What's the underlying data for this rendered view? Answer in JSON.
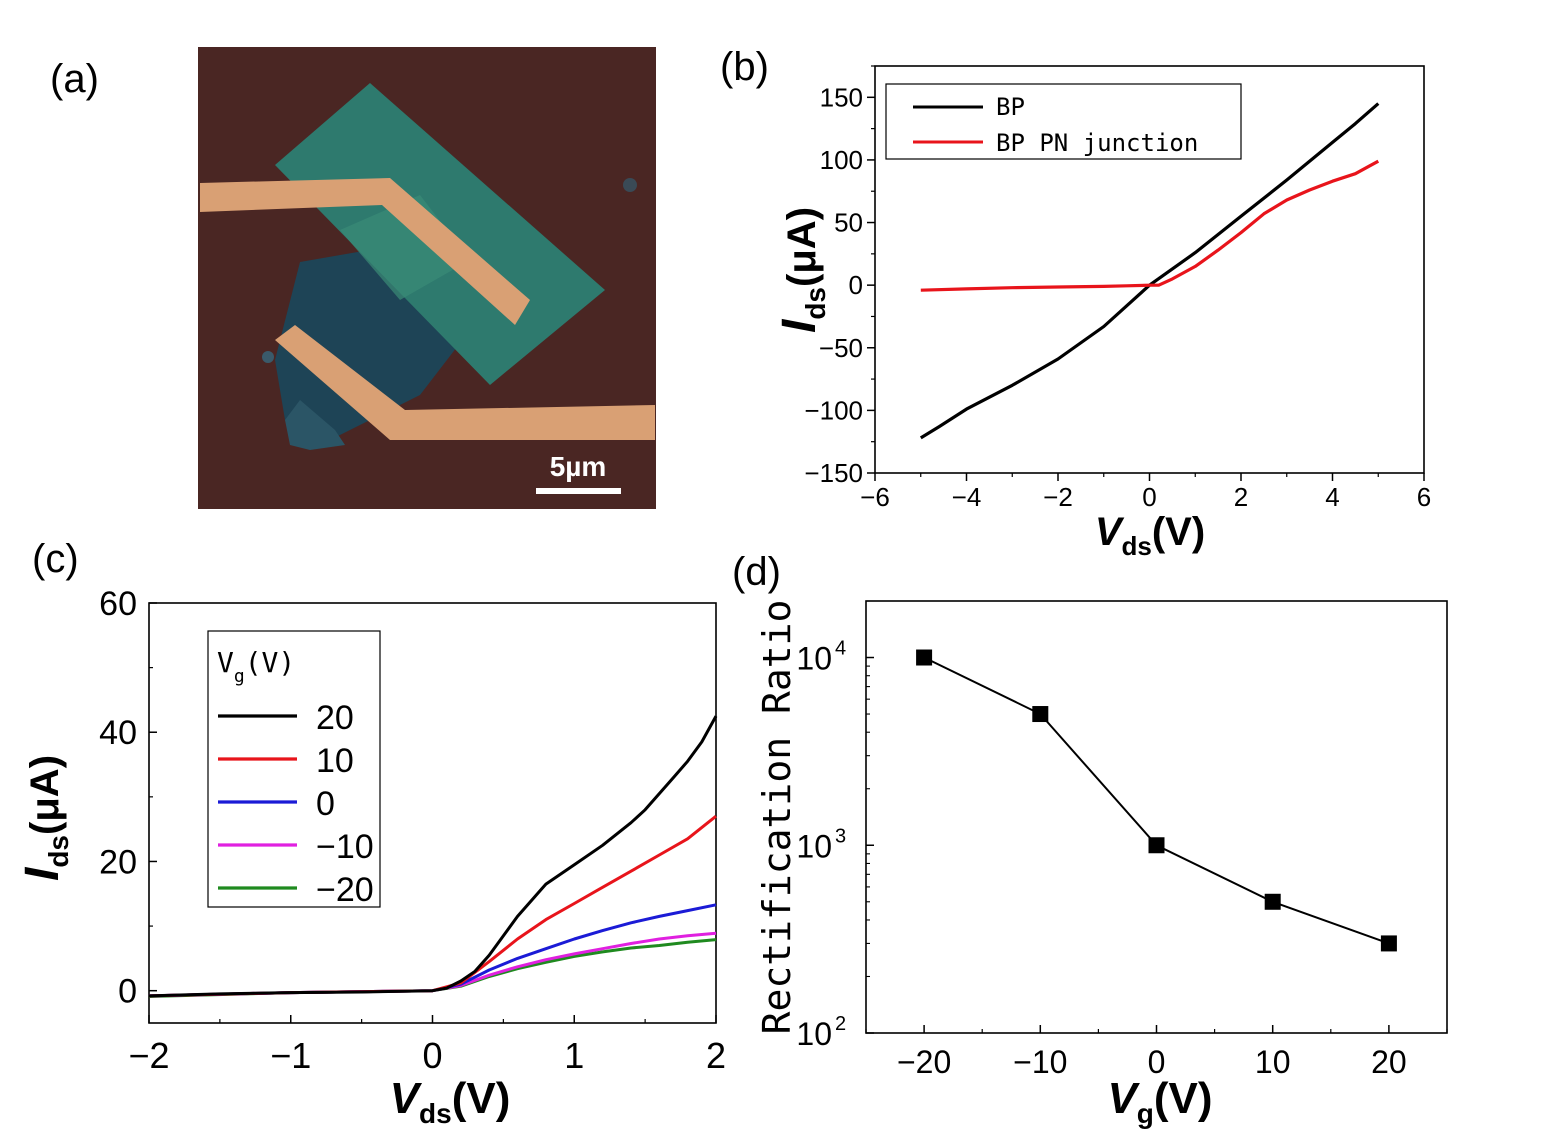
{
  "panel_labels": [
    "(a)",
    "(b)",
    "(c)",
    "(d)"
  ],
  "panel_a": {
    "scale_bar_label": "5µm",
    "colors": {
      "substrate": "#4a2623",
      "flake_dark": "#1e4456",
      "flake_teal": "#2e7a6e",
      "electrode": "#d9a074"
    }
  },
  "chart_data": [
    {
      "panel": "(b)",
      "type": "line",
      "xlabel_main": "V",
      "xlabel_sub": "ds",
      "xlabel_unit": "(V)",
      "ylabel_main": "I",
      "ylabel_sub": "ds",
      "ylabel_unit": "(μA)",
      "xlim": [
        -6,
        6
      ],
      "ylim": [
        -150,
        175
      ],
      "xticks": [
        -6,
        -4,
        -2,
        0,
        2,
        4,
        6
      ],
      "xtick_labels": [
        "−6",
        "−4",
        "−2",
        "0",
        "2",
        "4",
        "6"
      ],
      "yticks": [
        150,
        100,
        50,
        0,
        -50,
        -100,
        -150
      ],
      "ytick_labels": [
        "150",
        "100",
        "50",
        "0",
        "−50",
        "−100",
        "−150"
      ],
      "legend_position": "top-left",
      "series": [
        {
          "name": "BP",
          "color": "#000000",
          "points": [
            [
              -5,
              -122
            ],
            [
              -4.6,
              -113
            ],
            [
              -4,
              -99
            ],
            [
              -3,
              -80
            ],
            [
              -2,
              -59
            ],
            [
              -1,
              -33
            ],
            [
              0,
              0
            ],
            [
              1,
              26
            ],
            [
              2,
              55
            ],
            [
              3,
              84
            ],
            [
              4,
              114
            ],
            [
              4.5,
              129
            ],
            [
              5,
              145
            ]
          ]
        },
        {
          "name": "BP PN junction",
          "color": "#e8141b",
          "points": [
            [
              -5,
              -4
            ],
            [
              -4,
              -3
            ],
            [
              -3,
              -2
            ],
            [
              -2,
              -1.5
            ],
            [
              -1,
              -1
            ],
            [
              -0.5,
              -0.5
            ],
            [
              0,
              0
            ],
            [
              0.2,
              0
            ],
            [
              0.5,
              5
            ],
            [
              1,
              15
            ],
            [
              1.5,
              28
            ],
            [
              2,
              42
            ],
            [
              2.5,
              57
            ],
            [
              3,
              68
            ],
            [
              3.5,
              76
            ],
            [
              4,
              83
            ],
            [
              4.5,
              89
            ],
            [
              4.8,
              95
            ],
            [
              5,
              99
            ]
          ]
        }
      ]
    },
    {
      "panel": "(c)",
      "type": "line",
      "xlabel_main": "V",
      "xlabel_sub": "ds",
      "xlabel_unit": "(V)",
      "ylabel_main": "I",
      "ylabel_sub": "ds",
      "ylabel_unit": "(μA)",
      "xlim": [
        -2,
        2
      ],
      "ylim": [
        -5,
        60
      ],
      "xticks": [
        -2,
        -1,
        0,
        1,
        2
      ],
      "xtick_labels": [
        "−2",
        "−1",
        "0",
        "1",
        "2"
      ],
      "yticks": [
        60,
        40,
        20,
        0
      ],
      "ytick_labels": [
        "60",
        "40",
        "20",
        "0"
      ],
      "legend_title_main": "V",
      "legend_title_sub": "g",
      "legend_title_unit": "(V)",
      "legend_position": "top-left",
      "series": [
        {
          "name": "20",
          "color": "#000000",
          "points": [
            [
              -2,
              -0.8
            ],
            [
              -1.5,
              -0.5
            ],
            [
              -1,
              -0.3
            ],
            [
              -0.5,
              -0.2
            ],
            [
              0,
              0
            ],
            [
              0.1,
              0.4
            ],
            [
              0.2,
              1.5
            ],
            [
              0.3,
              3
            ],
            [
              0.4,
              5.5
            ],
            [
              0.5,
              8.5
            ],
            [
              0.6,
              11.5
            ],
            [
              0.7,
              14
            ],
            [
              0.8,
              16.5
            ],
            [
              1,
              19.5
            ],
            [
              1.2,
              22.5
            ],
            [
              1.4,
              26
            ],
            [
              1.5,
              28
            ],
            [
              1.6,
              30.5
            ],
            [
              1.7,
              33
            ],
            [
              1.8,
              35.5
            ],
            [
              1.9,
              38.5
            ],
            [
              2,
              42.5
            ]
          ]
        },
        {
          "name": "10",
          "color": "#e8141b",
          "points": [
            [
              -2,
              -0.8
            ],
            [
              -1,
              -0.3
            ],
            [
              0,
              0
            ],
            [
              0.2,
              1.2
            ],
            [
              0.4,
              4.5
            ],
            [
              0.6,
              8
            ],
            [
              0.8,
              11
            ],
            [
              1,
              13.5
            ],
            [
              1.2,
              16
            ],
            [
              1.4,
              18.5
            ],
            [
              1.6,
              21
            ],
            [
              1.8,
              23.5
            ],
            [
              2,
              27
            ]
          ]
        },
        {
          "name": "0",
          "color": "#1b1bd6",
          "points": [
            [
              -2,
              -0.8
            ],
            [
              -1,
              -0.3
            ],
            [
              0,
              0
            ],
            [
              0.2,
              1
            ],
            [
              0.4,
              3.2
            ],
            [
              0.6,
              5
            ],
            [
              0.8,
              6.5
            ],
            [
              1,
              8
            ],
            [
              1.2,
              9.3
            ],
            [
              1.4,
              10.5
            ],
            [
              1.6,
              11.5
            ],
            [
              1.8,
              12.4
            ],
            [
              2,
              13.3
            ]
          ]
        },
        {
          "name": "−10",
          "color": "#e020e0",
          "points": [
            [
              -2,
              -0.8
            ],
            [
              -1,
              -0.3
            ],
            [
              0,
              0
            ],
            [
              0.2,
              0.8
            ],
            [
              0.4,
              2.4
            ],
            [
              0.6,
              3.7
            ],
            [
              0.8,
              4.8
            ],
            [
              1,
              5.7
            ],
            [
              1.2,
              6.5
            ],
            [
              1.4,
              7.3
            ],
            [
              1.6,
              8
            ],
            [
              1.8,
              8.5
            ],
            [
              2,
              8.9
            ]
          ]
        },
        {
          "name": "−20",
          "color": "#1f8a1f",
          "points": [
            [
              -2,
              -0.9
            ],
            [
              -1,
              -0.3
            ],
            [
              0,
              0
            ],
            [
              0.2,
              0.7
            ],
            [
              0.4,
              2.2
            ],
            [
              0.6,
              3.4
            ],
            [
              0.8,
              4.4
            ],
            [
              1,
              5.3
            ],
            [
              1.2,
              6
            ],
            [
              1.4,
              6.6
            ],
            [
              1.6,
              7
            ],
            [
              1.8,
              7.5
            ],
            [
              2,
              7.9
            ]
          ]
        }
      ]
    },
    {
      "panel": "(d)",
      "type": "line",
      "markers": "square",
      "xlabel_main": "V",
      "xlabel_sub": "g",
      "xlabel_unit": "(V)",
      "ylabel": "Rectification Ratio",
      "ylog": true,
      "xlim": [
        -25,
        25
      ],
      "ylim": [
        100,
        20000
      ],
      "xticks": [
        -20,
        -10,
        0,
        10,
        20
      ],
      "xtick_labels": [
        "−20",
        "−10",
        "0",
        "10",
        "20"
      ],
      "yticks": [
        10000,
        1000,
        100
      ],
      "ytick_base": "10",
      "ytick_exponents": [
        "4",
        "3",
        "2"
      ],
      "series": [
        {
          "name": "",
          "color": "#000000",
          "points": [
            [
              -20,
              10000
            ],
            [
              -10,
              5000
            ],
            [
              0,
              1000
            ],
            [
              10,
              500
            ],
            [
              20,
              300
            ]
          ]
        }
      ]
    }
  ]
}
